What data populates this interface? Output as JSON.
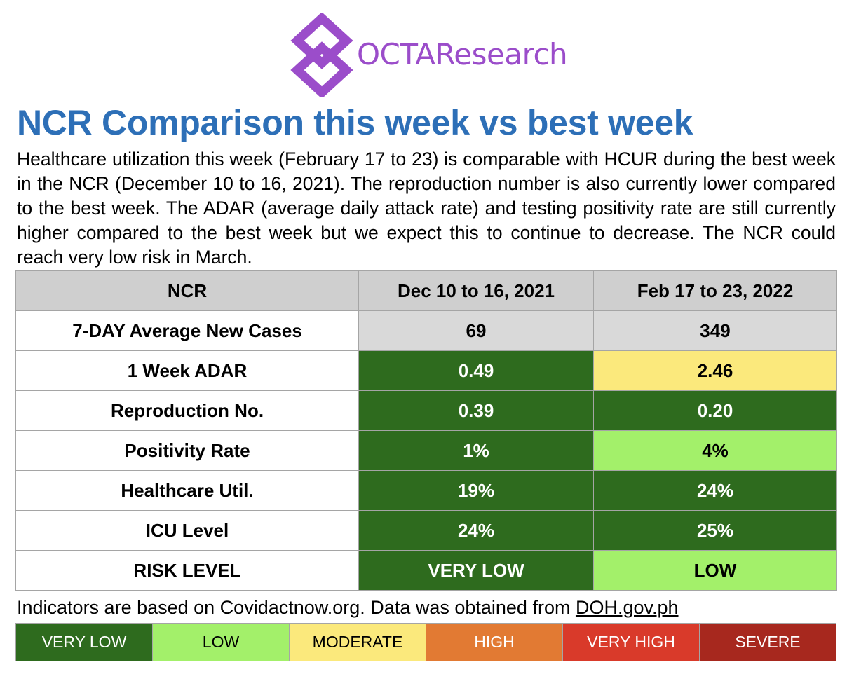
{
  "logo": {
    "brand": "OCTAResearch"
  },
  "title": "NCR Comparison this week vs best week",
  "description": "Healthcare utilization this week (February 17 to 23) is comparable with HCUR during the best week in the NCR (December 10 to 16, 2021). The reproduction number is also currently lower compared to the best week. The ADAR (average daily attack rate) and testing positivity rate are still currently higher compared to the best week but we expect this to continue to decrease. The NCR could reach very low risk in March.",
  "table": {
    "headers": [
      "NCR",
      "Dec 10 to 16, 2021",
      "Feb 17 to 23, 2022"
    ],
    "rows": [
      {
        "label": "7-DAY Average New Cases",
        "values": [
          "69",
          "349"
        ]
      },
      {
        "label": "1 Week ADAR",
        "values": [
          "0.49",
          "2.46"
        ]
      },
      {
        "label": "Reproduction No.",
        "values": [
          "0.39",
          "0.20"
        ]
      },
      {
        "label": "Positivity Rate",
        "values": [
          "1%",
          "4%"
        ]
      },
      {
        "label": "Healthcare Util.",
        "values": [
          "19%",
          "24%"
        ]
      },
      {
        "label": "ICU Level",
        "values": [
          "24%",
          "25%"
        ]
      },
      {
        "label": "RISK LEVEL",
        "values": [
          "VERY LOW",
          "LOW"
        ]
      }
    ]
  },
  "footer": {
    "text": "Indicators are based on Covidactnow.org. Data was obtained from ",
    "link": "DOH.gov.ph"
  },
  "legend": [
    {
      "label": "VERY LOW",
      "color": "#2e6b1e",
      "text_color": "#ffffff"
    },
    {
      "label": "LOW",
      "color": "#a3f06a",
      "text_color": "#000000"
    },
    {
      "label": "MODERATE",
      "color": "#fbe97c",
      "text_color": "#000000"
    },
    {
      "label": "HIGH",
      "color": "#e27a33",
      "text_color": "#ffffff"
    },
    {
      "label": "VERY HIGH",
      "color": "#d93a2a",
      "text_color": "#ffffff"
    },
    {
      "label": "SEVERE",
      "color": "#a7281e",
      "text_color": "#ffffff"
    }
  ]
}
